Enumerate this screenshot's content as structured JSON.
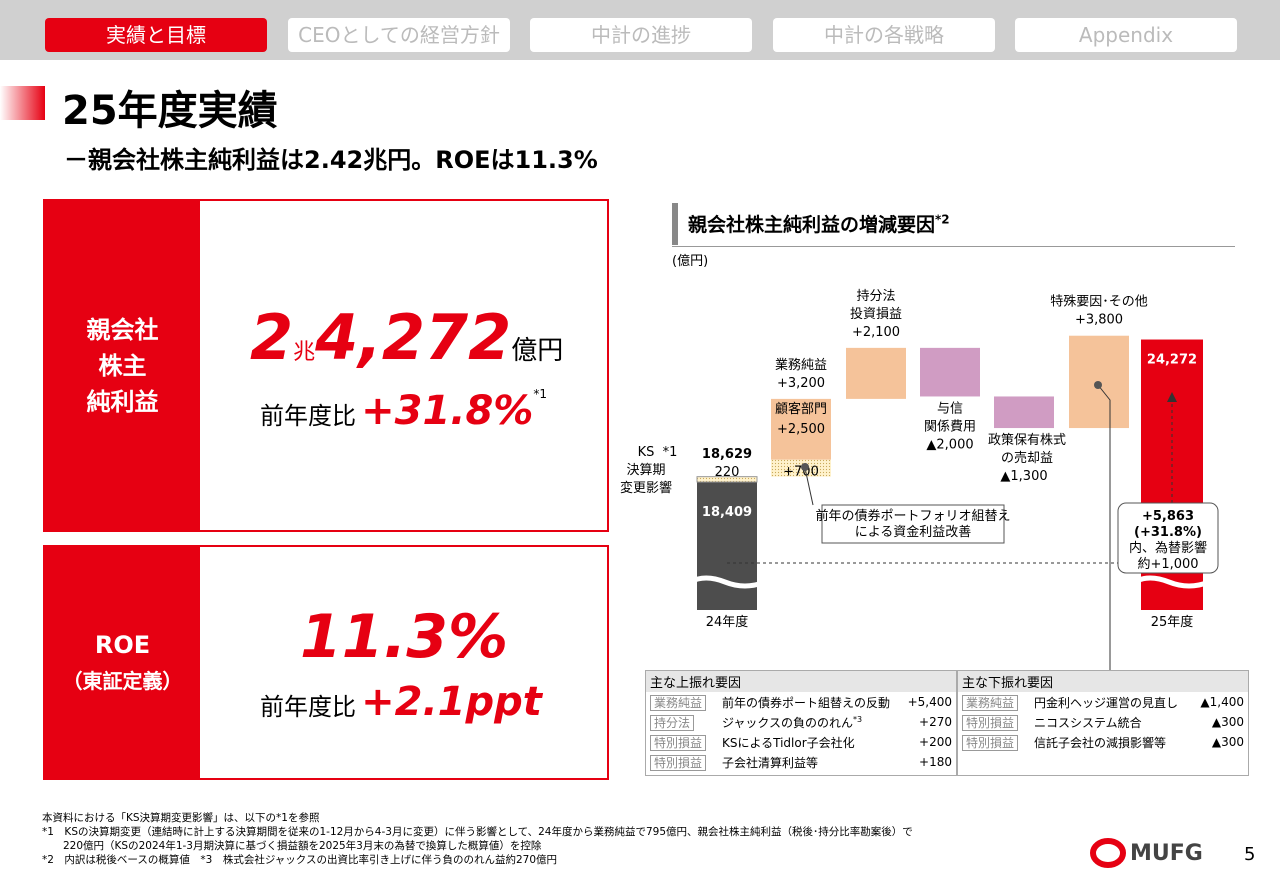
{
  "nav": [
    "実績と目標",
    "CEOとしての経営方針",
    "中計の進捗",
    "中計の各戦略",
    "Appendix"
  ],
  "header": {
    "title": "25年度実績",
    "subtitle": "－親会社株主純利益は2.42兆円。ROEは11.3%"
  },
  "kpis": [
    {
      "label": [
        "親会社",
        "株主",
        "純利益"
      ],
      "value_parts": [
        "2",
        "兆",
        "4,272",
        "億円"
      ],
      "compare_label": "前年度比",
      "compare": "+31.8%",
      "note": "*1"
    },
    {
      "label": [
        "ROE",
        "（東証定義）"
      ],
      "value": "11.3%",
      "compare_label": "前年度比",
      "compare": "+2.1ppt"
    }
  ],
  "waterfall": {
    "title": "親会社株主純利益の増減要因",
    "title_note": "*2",
    "unit": "(億円)",
    "start": {
      "category": "24年度",
      "value": 18409,
      "label": "18,409",
      "adjusted_label": "18,629"
    },
    "steps": [
      {
        "name": [
          "KS",
          "決算期",
          "変更影響"
        ],
        "name_note": "*1",
        "value": 220,
        "label": "220",
        "color": "#d9d9d9"
      },
      {
        "name": [
          "業務純益"
        ],
        "value": 3200,
        "label": "+3,200",
        "color": "#f5c39a",
        "parts": [
          {
            "value": 700,
            "label": "+700"
          },
          {
            "name": "顧客部門",
            "value": 2500,
            "label": "+2,500"
          }
        ]
      },
      {
        "name": [
          "持分法",
          "投資損益"
        ],
        "value": 2100,
        "label": "+2,100",
        "color": "#f5c39a"
      },
      {
        "name": [
          "与信",
          "関係費用"
        ],
        "value": -2000,
        "label": "▲2,000",
        "color": "#d09cc3"
      },
      {
        "name": [
          "政策保有株式",
          "の売却益"
        ],
        "value": -1300,
        "label": "▲1,300",
        "color": "#d09cc3"
      },
      {
        "name": [
          "特殊要因･その他"
        ],
        "value": 3800,
        "label": "+3,800",
        "color": "#f5c39a"
      }
    ],
    "end": {
      "category": "25年度",
      "value": 24272,
      "label": "24,272",
      "color": "#e60012"
    },
    "change_note": [
      "+5,863",
      "(+31.8%)",
      "内、為替影響",
      "約+1,000"
    ],
    "callout": [
      "前年の債券ポートフォリオ組替え",
      "による資金利益改善"
    ]
  },
  "tables": [
    {
      "title": "主な上振れ要因",
      "rows": [
        {
          "tag": "業務純益",
          "text": "前年の債券ポート組替えの反動",
          "value": "+5,400"
        },
        {
          "tag": "持分法",
          "text": "ジャックスの負ののれん",
          "note": "*3",
          "value": "+270"
        },
        {
          "tag": "特別損益",
          "text": "KSによるTidlor子会社化",
          "value": "+200"
        },
        {
          "tag": "特別損益",
          "text": "子会社清算利益等",
          "value": "+180"
        }
      ]
    },
    {
      "title": "主な下振れ要因",
      "rows": [
        {
          "tag": "業務純益",
          "text": "円金利ヘッジ運営の見直し",
          "value": "▲1,400"
        },
        {
          "tag": "特別損益",
          "text": "ニコスシステム統合",
          "value": "▲300"
        },
        {
          "tag": "特別損益",
          "text": "信託子会社の減損影響等",
          "value": "▲300"
        }
      ]
    }
  ],
  "footnotes": [
    "本資料における「KS決算期変更影響」は、以下の*1を参照",
    "*1　KSの決算期変更（連結時に計上する決算期間を従来の1-12月から4-3月に変更）に伴う影響として、24年度から業務純益で795億円、親会社株主純利益（税後･持分比率勘案後）で",
    "　　220億円（KSの2024年1-3月期決算に基づく損益額を2025年3月末の為替で換算した概算値）を控除",
    "*2　内訳は税後ベースの概算値　*3　株式会社ジャックスの出資比率引き上げに伴う負ののれん益約270億円"
  ],
  "logo": "MUFG",
  "page": "5"
}
